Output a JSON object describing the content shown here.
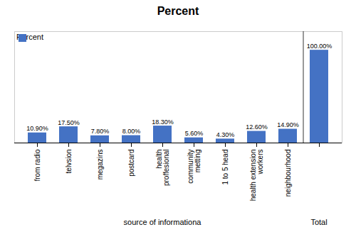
{
  "chart_data": {
    "type": "bar",
    "title": "Percent",
    "xlabel": "source of informationa",
    "categories": [
      "from radio",
      "telvsion",
      "megazins",
      "postcard",
      "health\nproffesional",
      "community\nmetting",
      "1 to 5 head",
      "health extension\nworkers",
      "neighbourhood",
      null
    ],
    "series": [
      {
        "name": "Percent",
        "color": "#4472C4",
        "values": [
          10.9,
          17.5,
          7.8,
          8.0,
          18.3,
          5.6,
          4.3,
          12.6,
          14.9,
          100.0
        ],
        "value_labels": [
          "10.90%",
          "17.50%",
          "7.80%",
          "8.00%",
          "18.30%",
          "5.60%",
          "4.30%",
          "12.60%",
          "14.90%",
          "100.00%"
        ]
      }
    ],
    "ylim": [
      0,
      120
    ],
    "yticks": [],
    "tick_labels": "x",
    "data_labels": true,
    "legend": "upper left",
    "grid": false,
    "annotations": [
      {
        "text": "Total"
      }
    ]
  }
}
